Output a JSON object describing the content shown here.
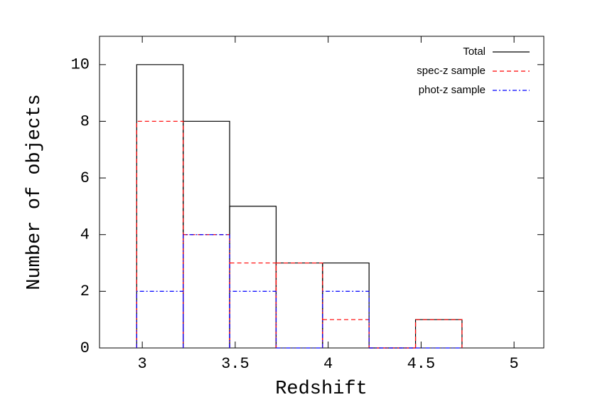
{
  "chart_data": {
    "type": "histogram",
    "x_label": "Redshift",
    "y_label": "Number of objects",
    "bins": [
      2.97,
      3.22,
      3.47,
      3.72,
      3.97,
      4.22,
      4.47,
      4.72
    ],
    "series": [
      {
        "name": "Total",
        "color": "#000000",
        "dash": "none",
        "values": [
          10,
          8,
          5,
          3,
          3,
          0,
          1
        ]
      },
      {
        "name": "spec-z sample",
        "color": "#ff0000",
        "dash": "6,4",
        "values": [
          8,
          4,
          3,
          3,
          1,
          0,
          1
        ]
      },
      {
        "name": "phot-z sample",
        "color": "#0000ff",
        "dash": "6,3,2,3",
        "values": [
          2,
          4,
          2,
          0,
          2,
          0,
          0
        ]
      }
    ],
    "xlim": [
      2.77,
      5.16
    ],
    "ylim": [
      0,
      11
    ],
    "xticks": [
      3,
      3.5,
      4,
      4.5,
      5
    ],
    "yticks": [
      0,
      2,
      4,
      6,
      8,
      10
    ],
    "legend": "top-right"
  }
}
